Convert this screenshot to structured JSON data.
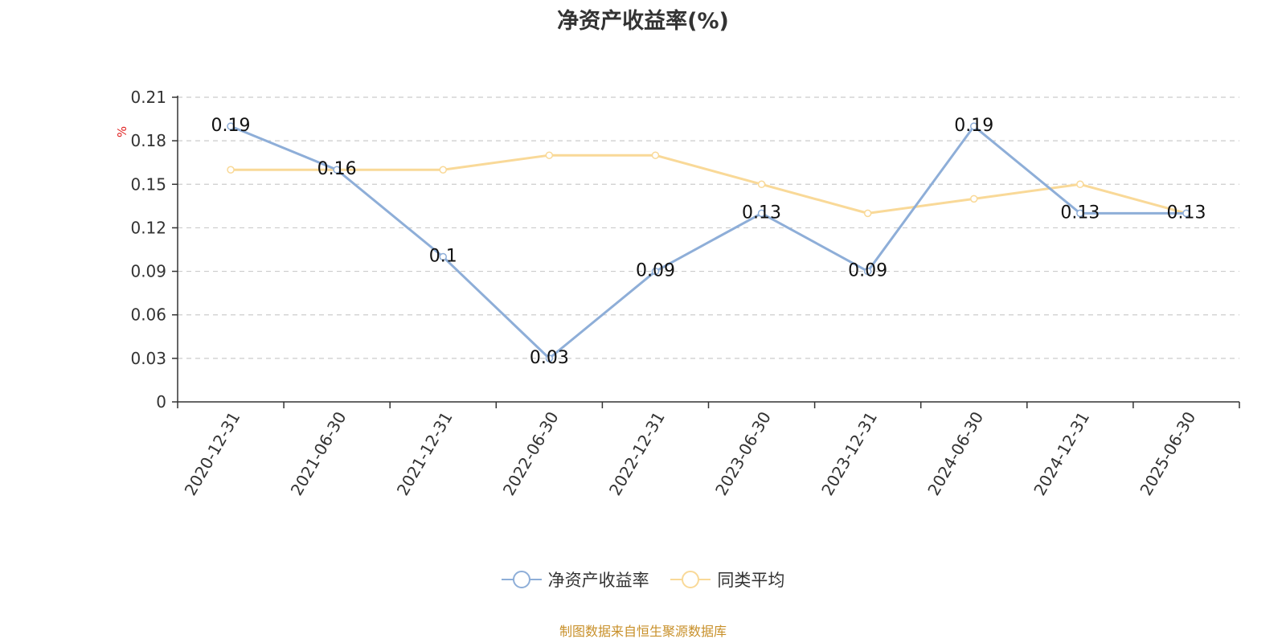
{
  "chart_data": {
    "type": "line",
    "title": "净资产收益率(%)",
    "ylabel": "%",
    "xlabel": "",
    "categories": [
      "2020-12-31",
      "2021-06-30",
      "2021-12-31",
      "2022-06-30",
      "2022-12-31",
      "2023-06-30",
      "2023-12-31",
      "2024-06-30",
      "2024-12-31",
      "2025-06-30"
    ],
    "ylim": [
      0,
      0.21
    ],
    "yticks": [
      "0",
      "0.03",
      "0.06",
      "0.09",
      "0.12",
      "0.15",
      "0.18",
      "0.21"
    ],
    "grid": true,
    "legend_position": "bottom",
    "series": [
      {
        "name": "净资产收益率",
        "color": "#8eaed8",
        "values": [
          0.19,
          0.16,
          0.1,
          0.03,
          0.09,
          0.13,
          0.09,
          0.19,
          0.13,
          0.13
        ],
        "labels": [
          "0.19",
          "0.16",
          "0.1",
          "0.03",
          "0.09",
          "0.13",
          "0.09",
          "0.19",
          "0.13",
          "0.13"
        ]
      },
      {
        "name": "同类平均",
        "color": "#f9d998",
        "values": [
          0.16,
          0.16,
          0.16,
          0.17,
          0.17,
          0.15,
          0.13,
          0.14,
          0.15,
          0.13
        ]
      }
    ]
  },
  "source_text": "制图数据来自恒生聚源数据库",
  "source_color": "#c8902a",
  "ylabel_color": "#e02020",
  "axis_color": "#333333",
  "grid_color": "#cccccc"
}
